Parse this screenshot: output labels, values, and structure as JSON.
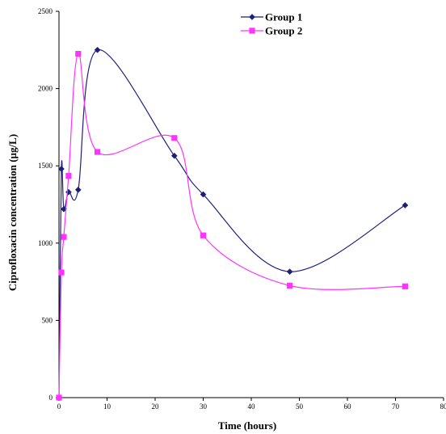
{
  "chart_data": {
    "type": "line",
    "xlabel": "Time (hours)",
    "ylabel": "Ciprofloxacin concentration (µg/L)",
    "xlim": [
      0,
      80
    ],
    "ylim": [
      0,
      2500
    ],
    "xticks": [
      0,
      10,
      20,
      30,
      40,
      50,
      60,
      70,
      80
    ],
    "yticks": [
      0,
      500,
      1000,
      1500,
      2000,
      2500
    ],
    "grid": false,
    "legend_position": "top-right",
    "series": [
      {
        "name": "Group 1",
        "color": "#1f1f7a",
        "marker": "diamond",
        "x": [
          0,
          0.5,
          1,
          2,
          4,
          8,
          24,
          30,
          48,
          72
        ],
        "y": [
          0,
          1480,
          1220,
          1330,
          1345,
          2250,
          1565,
          1315,
          815,
          1245
        ]
      },
      {
        "name": "Group 2",
        "color": "#ff33ff",
        "marker": "square",
        "x": [
          0,
          0.5,
          1,
          2,
          4,
          8,
          24,
          30,
          48,
          72
        ],
        "y": [
          0,
          810,
          1040,
          1435,
          2225,
          1590,
          1680,
          1050,
          725,
          720
        ]
      }
    ]
  }
}
